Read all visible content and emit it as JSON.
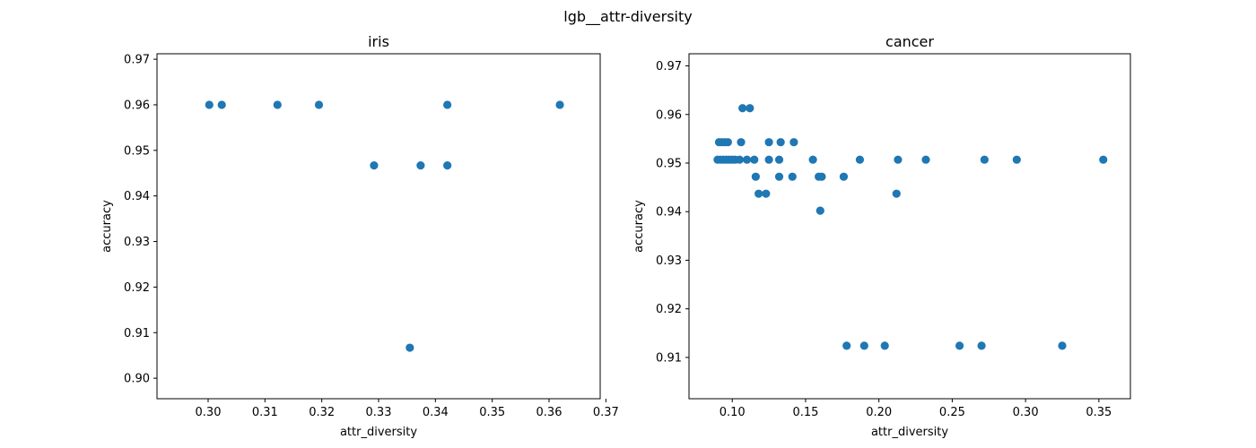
{
  "figure": {
    "suptitle": "lgb__attr-diversity"
  },
  "chart_data": [
    {
      "type": "scatter",
      "title": "iris",
      "xlabel": "attr_diversity",
      "ylabel": "accuracy",
      "xlim": [
        0.291,
        0.369
      ],
      "ylim": [
        0.8955,
        0.9712
      ],
      "xticks": [
        0.3,
        0.31,
        0.32,
        0.33,
        0.34,
        0.35,
        0.36,
        0.37
      ],
      "xtick_labels": [
        "0.30",
        "0.31",
        "0.32",
        "0.33",
        "0.34",
        "0.35",
        "0.36",
        "0.37"
      ],
      "yticks": [
        0.9,
        0.91,
        0.92,
        0.93,
        0.94,
        0.95,
        0.96,
        0.97
      ],
      "ytick_labels": [
        "0.90",
        "0.91",
        "0.92",
        "0.93",
        "0.94",
        "0.95",
        "0.96",
        "0.97"
      ],
      "color": "#1f77b4",
      "x": [
        0.3002,
        0.3024,
        0.3122,
        0.3195,
        0.3292,
        0.3374,
        0.3421,
        0.3421,
        0.3355,
        0.3619
      ],
      "y": [
        0.96,
        0.96,
        0.96,
        0.96,
        0.9467,
        0.9467,
        0.96,
        0.9467,
        0.9067,
        0.96
      ]
    },
    {
      "type": "scatter",
      "title": "cancer",
      "xlabel": "attr_diversity",
      "ylabel": "accuracy",
      "xlim": [
        0.0705,
        0.3715
      ],
      "ylim": [
        0.9015,
        0.9725
      ],
      "xticks": [
        0.1,
        0.15,
        0.2,
        0.25,
        0.3,
        0.35
      ],
      "xtick_labels": [
        "0.10",
        "0.15",
        "0.20",
        "0.25",
        "0.30",
        "0.35"
      ],
      "yticks": [
        0.91,
        0.92,
        0.93,
        0.94,
        0.95,
        0.96,
        0.97
      ],
      "ytick_labels": [
        "0.91",
        "0.92",
        "0.93",
        "0.94",
        "0.95",
        "0.96",
        "0.97"
      ],
      "color": "#1f77b4",
      "x": [
        0.09,
        0.092,
        0.094,
        0.096,
        0.098,
        0.1,
        0.102,
        0.105,
        0.11,
        0.115,
        0.132,
        0.155,
        0.187,
        0.213,
        0.232,
        0.272,
        0.294,
        0.353,
        0.091,
        0.093,
        0.095,
        0.097,
        0.106,
        0.125,
        0.133,
        0.142,
        0.107,
        0.112,
        0.116,
        0.132,
        0.141,
        0.159,
        0.161,
        0.176,
        0.118,
        0.123,
        0.212,
        0.16,
        0.125,
        0.178,
        0.19,
        0.204,
        0.255,
        0.27,
        0.325
      ],
      "y": [
        0.9507,
        0.9507,
        0.9507,
        0.9507,
        0.9507,
        0.9507,
        0.9507,
        0.9507,
        0.9507,
        0.9507,
        0.9507,
        0.9507,
        0.9507,
        0.9507,
        0.9507,
        0.9507,
        0.9507,
        0.9507,
        0.9543,
        0.9543,
        0.9543,
        0.9543,
        0.9543,
        0.9543,
        0.9543,
        0.9543,
        0.9613,
        0.9613,
        0.9472,
        0.9472,
        0.9472,
        0.9472,
        0.9472,
        0.9472,
        0.9437,
        0.9437,
        0.9437,
        0.9402,
        0.9507,
        0.9124,
        0.9124,
        0.9124,
        0.9124,
        0.9124,
        0.9124
      ]
    }
  ]
}
